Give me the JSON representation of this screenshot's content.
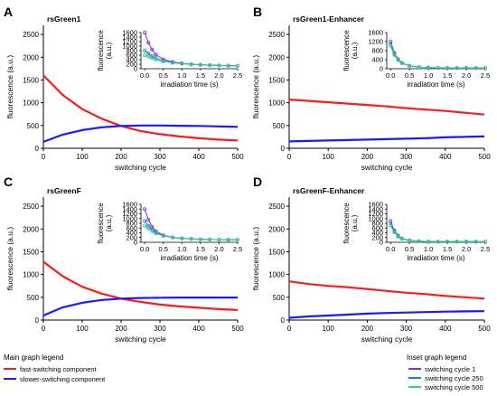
{
  "colors": {
    "fast": "#ff1a1a",
    "slow": "#1a1aff",
    "cycle1": "#8a2be2",
    "cycle250": "#2080c0",
    "cycle500": "#2ecc9a"
  },
  "legends": {
    "main": {
      "title": "Main graph legend",
      "items": [
        {
          "label": "fast-switching component",
          "color": "#ff1a1a"
        },
        {
          "label": "slower-switching component",
          "color": "#1a1aff"
        }
      ]
    },
    "inset": {
      "title": "Inset graph legend",
      "items": [
        {
          "label": "switching cycle 1",
          "color": "#8a2be2"
        },
        {
          "label": "switching cycle 250",
          "color": "#2080c0"
        },
        {
          "label": "switching cycle 500",
          "color": "#2ecc9a"
        }
      ]
    }
  },
  "chart_data": [
    {
      "panel": "A",
      "title": "rsGreen1",
      "type": "line",
      "xlabel": "switching cycle",
      "ylabel": "fluorescence (a.u.)",
      "xlim": [
        0,
        500
      ],
      "ylim": [
        0,
        2700
      ],
      "xticks": [
        0,
        100,
        200,
        300,
        400,
        500
      ],
      "yticks": [
        0,
        500,
        1000,
        1500,
        2000,
        2500
      ],
      "x": [
        0,
        50,
        100,
        150,
        200,
        250,
        300,
        350,
        400,
        450,
        500
      ],
      "series": [
        {
          "name": "fast-switching component",
          "color": "#ff1a1a",
          "values": [
            1600,
            1170,
            860,
            650,
            490,
            380,
            310,
            260,
            220,
            190,
            170
          ]
        },
        {
          "name": "slower-switching component",
          "color": "#1a1aff",
          "values": [
            140,
            300,
            400,
            460,
            490,
            500,
            500,
            495,
            490,
            480,
            470
          ]
        }
      ],
      "inset": {
        "xlabel": "irradiation time (s)",
        "ylabel": "fluorescence\n(a.u.)",
        "xlim": [
          -0.1,
          2.5
        ],
        "ylim": [
          0,
          1600
        ],
        "xticks": [
          "0.0",
          "0.5",
          "1.0",
          "1.5",
          "2.0",
          "2.5"
        ],
        "yticks": [
          0,
          200,
          400,
          600,
          800,
          1000,
          1200,
          1400,
          1600
        ],
        "x": [
          0.0,
          0.1,
          0.2,
          0.3,
          0.5,
          0.75,
          1.0,
          1.25,
          1.5,
          1.75,
          2.0,
          2.25,
          2.5
        ],
        "series": [
          {
            "name": "switching cycle 1",
            "color": "#8a2be2",
            "values": [
              1600,
              1150,
              850,
              620,
              420,
              300,
              240,
              200,
              180,
              160,
              150,
              140,
              130
            ]
          },
          {
            "name": "switching cycle 250",
            "color": "#2080c0",
            "values": [
              800,
              680,
              560,
              460,
              350,
              270,
              220,
              190,
              170,
              150,
              140,
              130,
              120
            ]
          },
          {
            "name": "switching cycle 500",
            "color": "#2ecc9a",
            "values": [
              600,
              530,
              460,
              400,
              320,
              260,
              220,
              190,
              170,
              150,
              140,
              130,
              125
            ]
          }
        ]
      }
    },
    {
      "panel": "B",
      "title": "rsGreen1-Enhancer",
      "type": "line",
      "xlabel": "switching cycle",
      "ylabel": "fluorescence (a.u.)",
      "xlim": [
        0,
        500
      ],
      "ylim": [
        0,
        2700
      ],
      "xticks": [
        0,
        100,
        200,
        300,
        400,
        500
      ],
      "yticks": [
        0,
        500,
        1000,
        1500,
        2000,
        2500
      ],
      "x": [
        0,
        50,
        100,
        150,
        200,
        250,
        300,
        350,
        400,
        450,
        500
      ],
      "series": [
        {
          "name": "fast-switching component",
          "color": "#ff1a1a",
          "values": [
            1070,
            1040,
            1010,
            980,
            950,
            920,
            880,
            850,
            820,
            780,
            740
          ]
        },
        {
          "name": "slower-switching component",
          "color": "#1a1aff",
          "values": [
            150,
            160,
            170,
            180,
            190,
            200,
            210,
            220,
            240,
            250,
            260
          ]
        }
      ],
      "inset": {
        "xlabel": "irradiation time (s)",
        "ylabel": "fluorescence\n(a.u.)",
        "xlim": [
          -0.1,
          2.5
        ],
        "ylim": [
          0,
          1600
        ],
        "xticks": [
          "0.0",
          "0.5",
          "1.0",
          "1.5",
          "2.0",
          "2.5"
        ],
        "yticks": [
          0,
          400,
          800,
          1200,
          1600
        ],
        "x": [
          0.0,
          0.1,
          0.2,
          0.3,
          0.5,
          0.75,
          1.0,
          1.25,
          1.5,
          1.75,
          2.0,
          2.25,
          2.5
        ],
        "series": [
          {
            "name": "switching cycle 1",
            "color": "#8a2be2",
            "values": [
              1200,
              700,
              420,
              260,
              130,
              70,
              50,
              40,
              35,
              30,
              30,
              28,
              28
            ]
          },
          {
            "name": "switching cycle 250",
            "color": "#2080c0",
            "values": [
              1100,
              650,
              400,
              250,
              125,
              68,
              48,
              40,
              34,
              30,
              29,
              28,
              27
            ]
          },
          {
            "name": "switching cycle 500",
            "color": "#2ecc9a",
            "values": [
              1000,
              600,
              380,
              240,
              120,
              66,
              46,
              38,
              33,
              30,
              28,
              27,
              26
            ]
          }
        ]
      }
    },
    {
      "panel": "C",
      "title": "rsGreenF",
      "type": "line",
      "xlabel": "switching cycle",
      "ylabel": "fluorescence (a.u.)",
      "xlim": [
        0,
        500
      ],
      "ylim": [
        0,
        2700
      ],
      "xticks": [
        0,
        100,
        200,
        300,
        400,
        500
      ],
      "yticks": [
        0,
        500,
        1000,
        1500,
        2000,
        2500
      ],
      "x": [
        0,
        50,
        100,
        150,
        200,
        250,
        300,
        350,
        400,
        450,
        500
      ],
      "series": [
        {
          "name": "fast-switching component",
          "color": "#ff1a1a",
          "values": [
            1280,
            960,
            730,
            580,
            470,
            400,
            340,
            300,
            270,
            240,
            220
          ]
        },
        {
          "name": "slower-switching component",
          "color": "#1a1aff",
          "values": [
            100,
            280,
            380,
            440,
            470,
            485,
            490,
            495,
            495,
            495,
            495
          ]
        }
      ],
      "inset": {
        "xlabel": "irradiation time (s)",
        "ylabel": "fluorescence\n(a.u.)",
        "xlim": [
          -0.1,
          2.5
        ],
        "ylim": [
          0,
          1600
        ],
        "xticks": [
          "0.0",
          "0.5",
          "1.0",
          "1.5",
          "2.0",
          "2.5"
        ],
        "yticks": [
          0,
          200,
          400,
          600,
          800,
          1000,
          1200,
          1400,
          1600
        ],
        "x": [
          0.0,
          0.1,
          0.2,
          0.3,
          0.5,
          0.75,
          1.0,
          1.25,
          1.5,
          1.75,
          2.0,
          2.25,
          2.5
        ],
        "series": [
          {
            "name": "switching cycle 1",
            "color": "#8a2be2",
            "values": [
              1400,
              950,
              660,
              470,
              300,
              210,
              170,
              150,
              130,
              120,
              115,
              110,
              105
            ]
          },
          {
            "name": "switching cycle 250",
            "color": "#2080c0",
            "values": [
              900,
              700,
              520,
              400,
              280,
              200,
              165,
              145,
              130,
              120,
              112,
              108,
              104
            ]
          },
          {
            "name": "switching cycle 500",
            "color": "#2ecc9a",
            "values": [
              700,
              580,
              460,
              370,
              270,
              200,
              165,
              145,
              130,
              118,
              110,
              105,
              100
            ]
          }
        ]
      }
    },
    {
      "panel": "D",
      "title": "rsGreenF-Enhancer",
      "type": "line",
      "xlabel": "switching cycle",
      "ylabel": "fluorescence (a.u.)",
      "xlim": [
        0,
        500
      ],
      "ylim": [
        0,
        2700
      ],
      "xticks": [
        0,
        100,
        200,
        300,
        400,
        500
      ],
      "yticks": [
        0,
        500,
        1000,
        1500,
        2000,
        2500
      ],
      "x": [
        0,
        50,
        100,
        150,
        200,
        250,
        300,
        350,
        400,
        450,
        500
      ],
      "series": [
        {
          "name": "fast-switching component",
          "color": "#ff1a1a",
          "values": [
            850,
            790,
            750,
            720,
            680,
            640,
            600,
            570,
            530,
            500,
            470
          ]
        },
        {
          "name": "slower-switching component",
          "color": "#1a1aff",
          "values": [
            50,
            80,
            100,
            120,
            140,
            155,
            165,
            175,
            185,
            190,
            195
          ]
        }
      ],
      "inset": {
        "xlabel": "irradiation time (s)",
        "ylabel": "fluorescence\n(a.u.)",
        "xlim": [
          -0.1,
          2.5
        ],
        "ylim": [
          0,
          1600
        ],
        "xticks": [
          "0.0",
          "0.5",
          "1.0",
          "1.5",
          "2.0",
          "2.5"
        ],
        "yticks": [
          0,
          200,
          400,
          600,
          800,
          1000,
          1200,
          1400,
          1600
        ],
        "x": [
          0.0,
          0.1,
          0.2,
          0.3,
          0.5,
          0.75,
          1.0,
          1.25,
          1.5,
          1.75,
          2.0,
          2.25,
          2.5
        ],
        "series": [
          {
            "name": "switching cycle 1",
            "color": "#8a2be2",
            "values": [
              900,
              500,
              280,
              160,
              80,
              45,
              35,
              30,
              28,
              26,
              25,
              25,
              24
            ]
          },
          {
            "name": "switching cycle 250",
            "color": "#2080c0",
            "values": [
              800,
              460,
              260,
              150,
              76,
              44,
              34,
              30,
              27,
              26,
              25,
              24,
              24
            ]
          },
          {
            "name": "switching cycle 500",
            "color": "#2ecc9a",
            "values": [
              700,
              420,
              240,
              140,
              72,
              42,
              33,
              29,
              27,
              25,
              24,
              24,
              23
            ]
          }
        ]
      }
    }
  ]
}
